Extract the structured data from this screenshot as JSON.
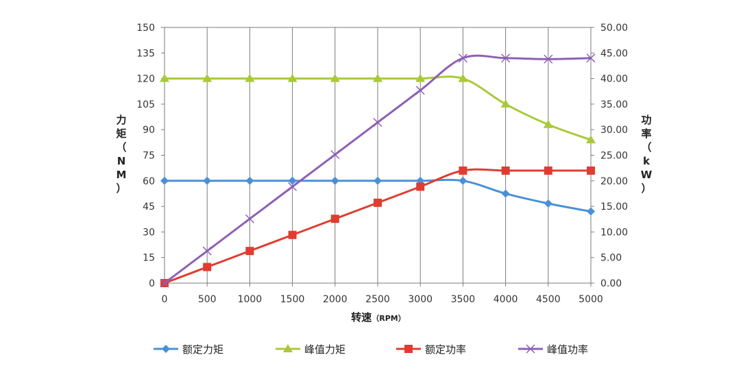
{
  "chart_data": {
    "type": "line",
    "x": [
      0,
      500,
      1000,
      1500,
      2000,
      2500,
      3000,
      3500,
      4000,
      4500,
      5000
    ],
    "xlabel": "转速",
    "xlabel_unit": "（RPM）",
    "ylabel_left_chars": [
      "力",
      "矩",
      "（",
      "N",
      "M",
      "）"
    ],
    "ylabel_right_chars": [
      "功",
      "率",
      "（",
      "k",
      "W",
      "）"
    ],
    "xlim": [
      0,
      5000
    ],
    "ylim_left": [
      0,
      150
    ],
    "ylim_right": [
      0,
      50
    ],
    "x_ticks": [
      "0",
      "500",
      "1000",
      "1500",
      "2000",
      "2500",
      "3000",
      "3500",
      "4000",
      "4500",
      "5000"
    ],
    "y_ticks_left": [
      "0",
      "15",
      "30",
      "45",
      "60",
      "75",
      "90",
      "105",
      "120",
      "135",
      "150"
    ],
    "y_ticks_right": [
      "0.00",
      "5.00",
      "10.00",
      "15.00",
      "20.00",
      "25.00",
      "30.00",
      "35.00",
      "40.00",
      "45.00",
      "50.00"
    ],
    "grid": "vertical",
    "legend_position": "bottom",
    "series": [
      {
        "name": "额定力矩",
        "axis": "left",
        "marker": "diamond",
        "color": "#4a90d9",
        "values": [
          60,
          60,
          60,
          60,
          60,
          60,
          60,
          60,
          52.5,
          46.7,
          42
        ]
      },
      {
        "name": "峰值力矩",
        "axis": "left",
        "marker": "triangle",
        "color": "#a9c93a",
        "values": [
          120,
          120,
          120,
          120,
          120,
          120,
          120,
          120,
          105,
          93,
          84
        ]
      },
      {
        "name": "额定功率",
        "axis": "right",
        "marker": "square",
        "color": "#e03c31",
        "values": [
          0,
          3.14,
          6.28,
          9.42,
          12.57,
          15.71,
          18.85,
          22.0,
          22.0,
          22.0,
          22.0
        ]
      },
      {
        "name": "峰值功率",
        "axis": "right",
        "marker": "x",
        "color": "#8e5fb6",
        "values": [
          0,
          6.28,
          12.57,
          18.85,
          25.13,
          31.42,
          37.7,
          44.0,
          44.0,
          43.8,
          44.0
        ]
      }
    ]
  }
}
